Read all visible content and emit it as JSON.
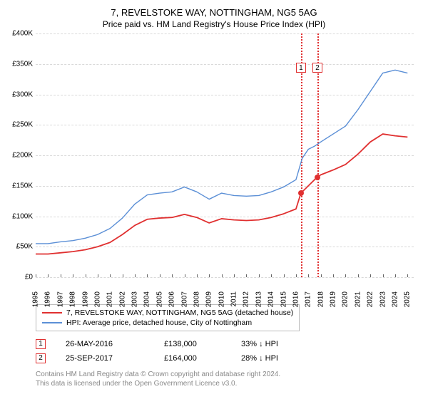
{
  "title_line1": "7, REVELSTOKE WAY, NOTTINGHAM, NG5 5AG",
  "title_line2": "Price paid vs. HM Land Registry's House Price Index (HPI)",
  "chart": {
    "type": "line",
    "background_color": "#ffffff",
    "grid_color": "#d9d9d9",
    "grid_dash": "2,3",
    "axis_color": "#666666",
    "label_fontsize": 10,
    "y": {
      "min": 0,
      "max": 400000,
      "step": 50000,
      "format_prefix": "£",
      "format_suffix": "K",
      "divide": 1000,
      "ticks": [
        "£0",
        "£50K",
        "£100K",
        "£150K",
        "£200K",
        "£250K",
        "£300K",
        "£350K",
        "£400K"
      ]
    },
    "x": {
      "min": 1995,
      "max": 2025.5,
      "label_step": 1,
      "labels": [
        "1995",
        "1996",
        "1997",
        "1998",
        "1999",
        "2000",
        "2001",
        "2002",
        "2003",
        "2004",
        "2005",
        "2006",
        "2007",
        "2008",
        "2009",
        "2010",
        "2011",
        "2012",
        "2013",
        "2014",
        "2015",
        "2016",
        "2017",
        "2018",
        "2019",
        "2020",
        "2021",
        "2022",
        "2023",
        "2024",
        "2025"
      ]
    },
    "series": [
      {
        "id": "hpi",
        "label": "HPI: Average price, detached house, City of Nottingham",
        "color": "#5b8fd6",
        "line_width": 1.4,
        "points": [
          [
            1995.0,
            55000
          ],
          [
            1996.0,
            55000
          ],
          [
            1997.0,
            58000
          ],
          [
            1998.0,
            60000
          ],
          [
            1999.0,
            64000
          ],
          [
            2000.0,
            70000
          ],
          [
            2001.0,
            80000
          ],
          [
            2002.0,
            97000
          ],
          [
            2003.0,
            120000
          ],
          [
            2004.0,
            135000
          ],
          [
            2005.0,
            138000
          ],
          [
            2006.0,
            140000
          ],
          [
            2007.0,
            148000
          ],
          [
            2008.0,
            140000
          ],
          [
            2009.0,
            128000
          ],
          [
            2010.0,
            138000
          ],
          [
            2011.0,
            134000
          ],
          [
            2012.0,
            133000
          ],
          [
            2013.0,
            134000
          ],
          [
            2014.0,
            140000
          ],
          [
            2015.0,
            148000
          ],
          [
            2016.0,
            160000
          ],
          [
            2016.5,
            195000
          ],
          [
            2017.0,
            210000
          ],
          [
            2017.5,
            215000
          ],
          [
            2018.0,
            222000
          ],
          [
            2019.0,
            235000
          ],
          [
            2020.0,
            248000
          ],
          [
            2021.0,
            275000
          ],
          [
            2022.0,
            305000
          ],
          [
            2023.0,
            335000
          ],
          [
            2024.0,
            340000
          ],
          [
            2025.0,
            335000
          ]
        ]
      },
      {
        "id": "property",
        "label": "7, REVELSTOKE WAY, NOTTINGHAM, NG5 5AG (detached house)",
        "color": "#e03030",
        "line_width": 1.8,
        "points": [
          [
            1995.0,
            38000
          ],
          [
            1996.0,
            38000
          ],
          [
            1997.0,
            40000
          ],
          [
            1998.0,
            42000
          ],
          [
            1999.0,
            45000
          ],
          [
            2000.0,
            50000
          ],
          [
            2001.0,
            57000
          ],
          [
            2002.0,
            70000
          ],
          [
            2003.0,
            85000
          ],
          [
            2004.0,
            95000
          ],
          [
            2005.0,
            97000
          ],
          [
            2006.0,
            98000
          ],
          [
            2007.0,
            103000
          ],
          [
            2008.0,
            98000
          ],
          [
            2009.0,
            89000
          ],
          [
            2010.0,
            96000
          ],
          [
            2011.0,
            94000
          ],
          [
            2012.0,
            93000
          ],
          [
            2013.0,
            94000
          ],
          [
            2014.0,
            98000
          ],
          [
            2015.0,
            104000
          ],
          [
            2016.0,
            112000
          ],
          [
            2016.4,
            138000
          ],
          [
            2017.0,
            150000
          ],
          [
            2017.7,
            164000
          ],
          [
            2018.0,
            168000
          ],
          [
            2019.0,
            176000
          ],
          [
            2020.0,
            185000
          ],
          [
            2021.0,
            202000
          ],
          [
            2022.0,
            222000
          ],
          [
            2023.0,
            235000
          ],
          [
            2024.0,
            232000
          ],
          [
            2025.0,
            230000
          ]
        ]
      }
    ],
    "sale_markers": [
      {
        "n": "1",
        "x": 2016.4,
        "y": 138000,
        "dot_color": "#e03030",
        "box_color": "#e03030",
        "line_color": "#e03030"
      },
      {
        "n": "2",
        "x": 2017.73,
        "y": 164000,
        "dot_color": "#e03030",
        "box_color": "#e03030",
        "line_color": "#e03030"
      }
    ],
    "marker_box_top_y": 352000
  },
  "legend": [
    {
      "color": "#e03030",
      "text": "7, REVELSTOKE WAY, NOTTINGHAM, NG5 5AG (detached house)"
    },
    {
      "color": "#5b8fd6",
      "text": "HPI: Average price, detached house, City of Nottingham"
    }
  ],
  "sales": [
    {
      "n": "1",
      "box_color": "#e03030",
      "date": "26-MAY-2016",
      "price": "£138,000",
      "diff": "33% ↓ HPI"
    },
    {
      "n": "2",
      "box_color": "#e03030",
      "date": "25-SEP-2017",
      "price": "£164,000",
      "diff": "28% ↓ HPI"
    }
  ],
  "footer_line1": "Contains HM Land Registry data © Crown copyright and database right 2024.",
  "footer_line2": "This data is licensed under the Open Government Licence v3.0.",
  "footer_color": "#888888"
}
